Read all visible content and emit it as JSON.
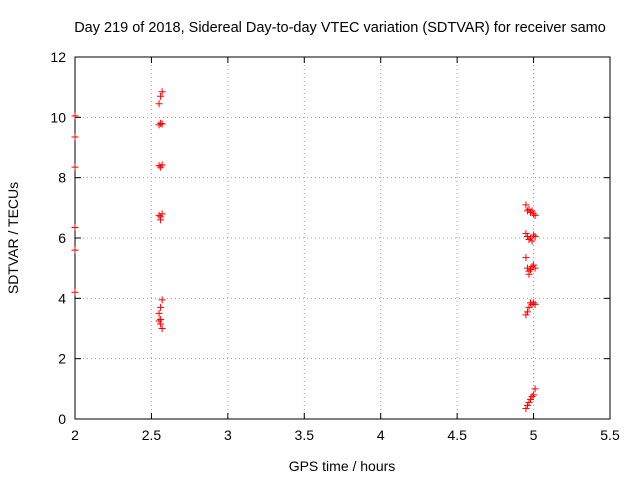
{
  "chart_data": {
    "type": "scatter",
    "title": "Day 219 of 2018, Sidereal Day-to-day VTEC variation (SDTVAR) for receiver samo",
    "xlabel": "GPS time / hours",
    "ylabel": "SDTVAR / TECUs",
    "xlim": [
      2,
      5.5
    ],
    "ylim": [
      0,
      12
    ],
    "x_ticks": [
      "2",
      "2.5",
      "3",
      "3.5",
      "4",
      "4.5",
      "5",
      "5.5"
    ],
    "y_ticks": [
      "0",
      "2",
      "4",
      "6",
      "8",
      "10",
      "12"
    ],
    "grid": true,
    "marker": "+",
    "series": [
      {
        "name": "SDTVAR",
        "color": "#ff0000",
        "points": [
          [
            2.0,
            10.05
          ],
          [
            2.0,
            9.35
          ],
          [
            2.0,
            8.35
          ],
          [
            2.0,
            6.35
          ],
          [
            2.0,
            5.6
          ],
          [
            2.0,
            4.2
          ],
          [
            2.55,
            10.45
          ],
          [
            2.56,
            10.7
          ],
          [
            2.57,
            10.85
          ],
          [
            2.56,
            9.8
          ],
          [
            2.57,
            9.78
          ],
          [
            2.55,
            9.75
          ],
          [
            2.55,
            8.4
          ],
          [
            2.56,
            8.35
          ],
          [
            2.57,
            8.42
          ],
          [
            2.55,
            6.75
          ],
          [
            2.56,
            6.7
          ],
          [
            2.57,
            6.8
          ],
          [
            2.56,
            6.6
          ],
          [
            2.57,
            3.95
          ],
          [
            2.56,
            3.7
          ],
          [
            2.55,
            3.5
          ],
          [
            2.56,
            3.3
          ],
          [
            2.55,
            3.25
          ],
          [
            2.56,
            3.15
          ],
          [
            2.57,
            3.0
          ],
          [
            4.95,
            7.1
          ],
          [
            4.96,
            6.9
          ],
          [
            4.97,
            6.95
          ],
          [
            4.98,
            6.85
          ],
          [
            4.99,
            6.9
          ],
          [
            5.0,
            6.8
          ],
          [
            5.01,
            6.75
          ],
          [
            4.95,
            6.15
          ],
          [
            4.96,
            6.05
          ],
          [
            4.97,
            5.95
          ],
          [
            4.98,
            6.0
          ],
          [
            4.99,
            5.9
          ],
          [
            5.0,
            6.1
          ],
          [
            5.01,
            6.05
          ],
          [
            4.95,
            5.35
          ],
          [
            4.96,
            5.0
          ],
          [
            4.97,
            4.9
          ],
          [
            4.97,
            4.8
          ],
          [
            4.98,
            4.95
          ],
          [
            4.99,
            5.05
          ],
          [
            5.0,
            5.1
          ],
          [
            5.01,
            5.0
          ],
          [
            4.95,
            3.45
          ],
          [
            4.96,
            3.55
          ],
          [
            4.97,
            3.7
          ],
          [
            4.98,
            3.85
          ],
          [
            4.99,
            3.8
          ],
          [
            5.0,
            3.85
          ],
          [
            5.01,
            3.8
          ],
          [
            4.95,
            0.35
          ],
          [
            4.96,
            0.45
          ],
          [
            4.97,
            0.55
          ],
          [
            4.98,
            0.65
          ],
          [
            4.99,
            0.75
          ],
          [
            5.0,
            0.8
          ],
          [
            5.01,
            1.0
          ]
        ]
      }
    ]
  }
}
